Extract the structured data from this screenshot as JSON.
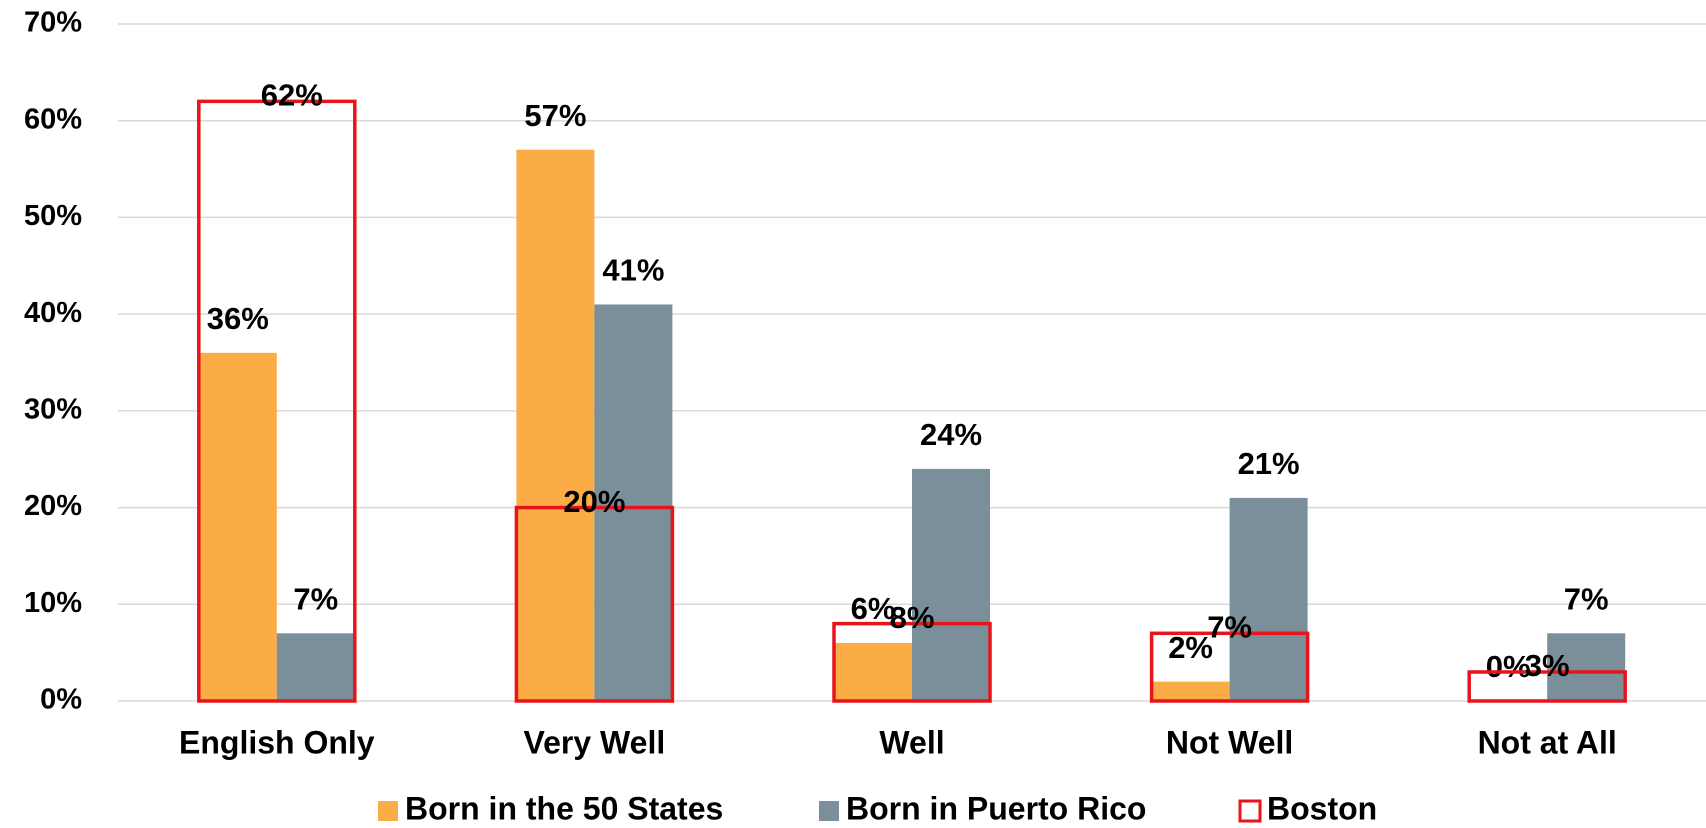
{
  "chart_data": {
    "type": "bar",
    "categories": [
      "English Only",
      "Very Well",
      "Well",
      "Not Well",
      "Not at All"
    ],
    "series": [
      {
        "name": "Born in the 50 States",
        "color": "#fbac44",
        "values": [
          36,
          57,
          6,
          2,
          0
        ],
        "value_labels": [
          "36%",
          "57%",
          "6%",
          "2%",
          "0%"
        ]
      },
      {
        "name": "Born in Puerto Rico",
        "color": "#7a8f9a",
        "values": [
          7,
          41,
          24,
          21,
          7
        ],
        "value_labels": [
          "7%",
          "41%",
          "24%",
          "21%",
          "7%"
        ]
      },
      {
        "name": "Boston",
        "color": "#e8141c",
        "values": [
          62,
          20,
          8,
          7,
          3
        ],
        "value_labels": [
          "62%",
          "20%",
          "8%",
          "7%",
          "3%"
        ]
      }
    ],
    "ylim": [
      0,
      70
    ],
    "yticks": [
      {
        "value": 0,
        "label": "0%"
      },
      {
        "value": 10,
        "label": "10%"
      },
      {
        "value": 20,
        "label": "20%"
      },
      {
        "value": 30,
        "label": "30%"
      },
      {
        "value": 40,
        "label": "40%"
      },
      {
        "value": 50,
        "label": "50%"
      },
      {
        "value": 60,
        "label": "60%"
      },
      {
        "value": 70,
        "label": "70%"
      }
    ],
    "grid": true
  }
}
